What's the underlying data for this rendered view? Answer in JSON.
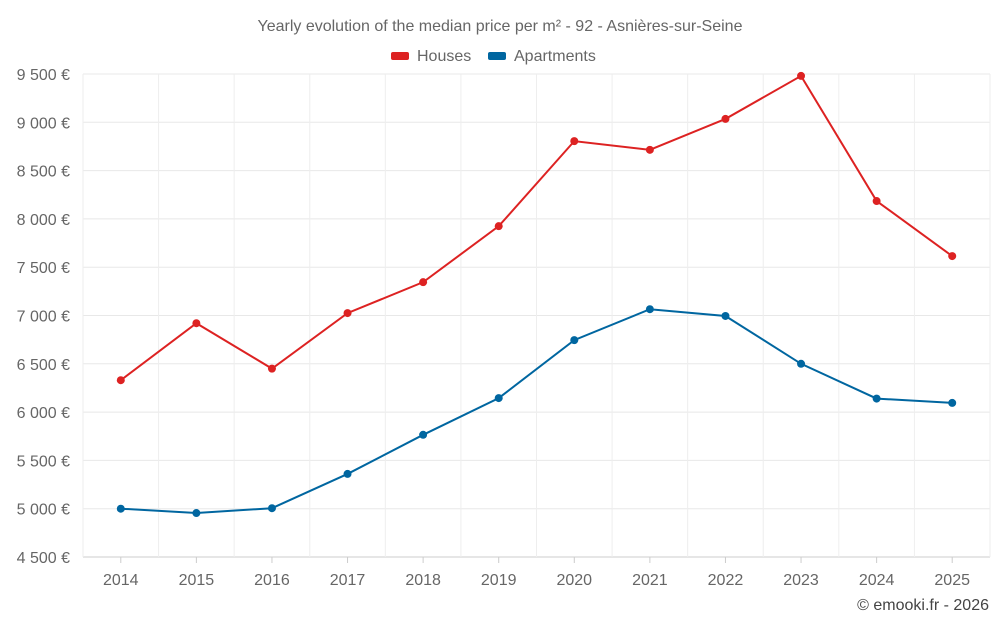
{
  "chart_data": {
    "type": "line",
    "title": "Yearly evolution of the median price per m² - 92 - Asnières-sur-Seine",
    "xlabel": "",
    "ylabel": "",
    "categories": [
      "2014",
      "2015",
      "2016",
      "2017",
      "2018",
      "2019",
      "2020",
      "2021",
      "2022",
      "2023",
      "2024",
      "2025"
    ],
    "ylim": [
      4500,
      9500
    ],
    "yticks": [
      4500,
      5000,
      5500,
      6000,
      6500,
      7000,
      7500,
      8000,
      8500,
      9000,
      9500
    ],
    "ytick_labels": [
      "4 500 €",
      "5 000 €",
      "5 500 €",
      "6 000 €",
      "6 500 €",
      "7 000 €",
      "7 500 €",
      "8 000 €",
      "8 500 €",
      "9 000 €",
      "9 500 €"
    ],
    "grid": true,
    "legend_position": "top-center",
    "series": [
      {
        "name": "Houses",
        "color": "#dd2222",
        "values": [
          6330,
          6920,
          6450,
          7025,
          7345,
          7925,
          8805,
          8715,
          9035,
          9480,
          8185,
          7615
        ]
      },
      {
        "name": "Apartments",
        "color": "#0066a0",
        "values": [
          5000,
          4955,
          5005,
          5360,
          5765,
          6145,
          6745,
          7065,
          6995,
          6500,
          6140,
          6095
        ]
      }
    ]
  },
  "credit": "© emooki.fr - 2026"
}
